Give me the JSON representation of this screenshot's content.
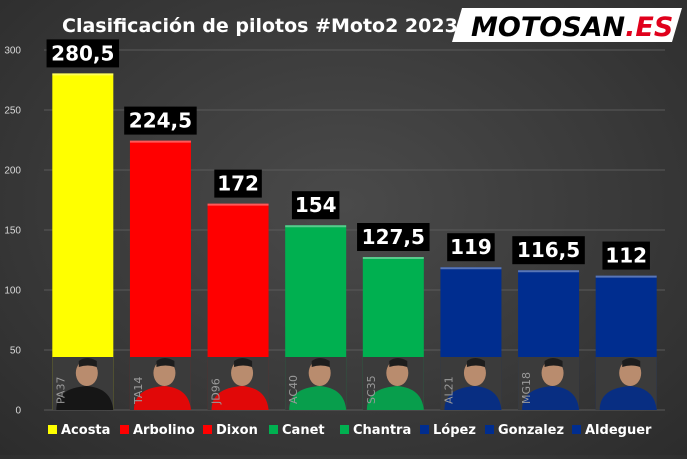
{
  "chart_data": {
    "type": "bar",
    "title": "Clasificación de pilotos #Moto2 2023",
    "xlabel": "",
    "ylabel": "",
    "ylim": [
      0,
      300
    ],
    "yticks": [
      "0",
      "50",
      "100",
      "150",
      "200",
      "250",
      "300"
    ],
    "grid": true,
    "legend_position": "bottom",
    "categories": [
      "Acosta",
      "Arbolino",
      "Dixon",
      "Canet",
      "Chantra",
      "López",
      "Gonzalez",
      "Aldeguer"
    ],
    "values": [
      280.5,
      224.5,
      172,
      154,
      127.5,
      119,
      116.5,
      112
    ],
    "value_labels": [
      "280,5",
      "224,5",
      "172",
      "154",
      "127,5",
      "119",
      "116,5",
      "112"
    ],
    "bar_colors": [
      "#ffff00",
      "#ff0000",
      "#ff0000",
      "#00b050",
      "#00b050",
      "#002d8f",
      "#002d8f",
      "#002d8f"
    ],
    "rider_numbers": [
      "PA37",
      "TA14",
      "JD96",
      "AC40",
      "SC35",
      "AL21",
      "MG18",
      ""
    ]
  },
  "logo": {
    "text": "MOTOSAN.ES",
    "main": "MOTOSAN",
    "suffix": ".ES",
    "accent_color": "#e0001b"
  },
  "colors": {
    "background": "#3c3c3c",
    "grid": "#5a5a5a",
    "text": "#ffffff"
  }
}
